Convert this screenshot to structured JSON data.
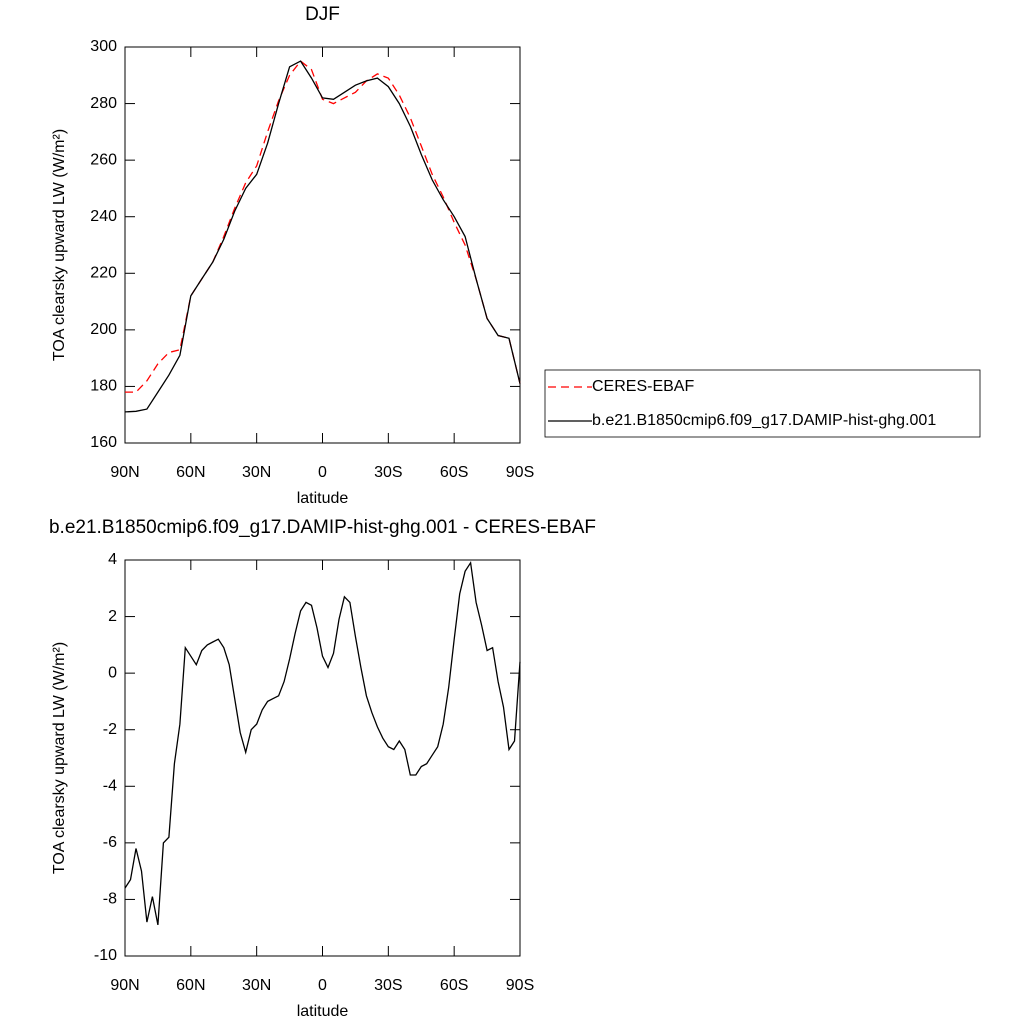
{
  "chart_data": [
    {
      "type": "line",
      "title": "DJF",
      "xlabel": "latitude",
      "ylabel": "TOA clearsky upward LW (W/m²)",
      "x": [
        90,
        85,
        80,
        75,
        70,
        65,
        60,
        55,
        50,
        45,
        40,
        35,
        30,
        25,
        20,
        15,
        10,
        5,
        0,
        -5,
        -10,
        -15,
        -20,
        -25,
        -30,
        -35,
        -40,
        -45,
        -50,
        -55,
        -60,
        -65,
        -70,
        -75,
        -80,
        -85,
        -90
      ],
      "series": [
        {
          "name": "CERES-EBAF",
          "color": "#ff0000",
          "dashed": true,
          "values": [
            178,
            178,
            182,
            188,
            192,
            193,
            212,
            218,
            224,
            233,
            243,
            252,
            258,
            270,
            281,
            290,
            295,
            292,
            281.5,
            280,
            282,
            284,
            288,
            290.5,
            289,
            283,
            275,
            265,
            255,
            247,
            238,
            230,
            218,
            204,
            198,
            197,
            181
          ]
        },
        {
          "name": "b.e21.B1850cmip6.f09_g17.DAMIP-hist-ghg.001",
          "color": "#000000",
          "dashed": false,
          "values": [
            171,
            171.2,
            172,
            178,
            184,
            191,
            212,
            218,
            224,
            232,
            242,
            250,
            255,
            266,
            280,
            293,
            295,
            289,
            282,
            281.5,
            284,
            286.5,
            288,
            289,
            286,
            280,
            272,
            262,
            253,
            246,
            240,
            233,
            218,
            204,
            198,
            197,
            181
          ]
        }
      ],
      "xlim": [
        90,
        -90
      ],
      "xticks": [
        {
          "value": 90,
          "label": "90N"
        },
        {
          "value": 60,
          "label": "60N"
        },
        {
          "value": 30,
          "label": "30N"
        },
        0,
        {
          "value": -30,
          "label": "30S"
        },
        {
          "value": -60,
          "label": "60S"
        },
        {
          "value": -90,
          "label": "90S"
        }
      ],
      "ylim": [
        160,
        300
      ],
      "yticks": [
        160,
        180,
        200,
        220,
        240,
        260,
        280,
        300
      ],
      "legend": "right"
    },
    {
      "type": "line",
      "title": "b.e21.B1850cmip6.f09_g17.DAMIP-hist-ghg.001 - CERES-EBAF",
      "xlabel": "latitude",
      "ylabel": "TOA clearsky upward LW (W/m²)",
      "x": [
        90,
        87.5,
        85,
        82.5,
        80,
        77.5,
        75,
        72.5,
        70,
        67.5,
        65,
        62.5,
        60,
        57.5,
        55,
        52.5,
        50,
        47.5,
        45,
        42.5,
        40,
        37.5,
        35,
        32.5,
        30,
        27.5,
        25,
        22.5,
        20,
        17.5,
        15,
        12.5,
        10,
        7.5,
        5,
        2.5,
        0,
        -2.5,
        -5,
        -7.5,
        -10,
        -12.5,
        -15,
        -17.5,
        -20,
        -22.5,
        -25,
        -27.5,
        -30,
        -32.5,
        -35,
        -37.5,
        -40,
        -42.5,
        -45,
        -47.5,
        -50,
        -52.5,
        -55,
        -57.5,
        -60,
        -62.5,
        -65,
        -67.5,
        -70,
        -72.5,
        -75,
        -77.5,
        -80,
        -82.5,
        -85,
        -87.5,
        -90
      ],
      "series": [
        {
          "color": "#000000",
          "dashed": false,
          "values": [
            -7.6,
            -7.3,
            -6.2,
            -7.0,
            -8.8,
            -7.9,
            -8.9,
            -6.0,
            -5.8,
            -3.2,
            -1.8,
            0.9,
            0.6,
            0.3,
            0.8,
            1.0,
            1.1,
            1.2,
            0.9,
            0.3,
            -0.9,
            -2.1,
            -2.8,
            -2.0,
            -1.8,
            -1.3,
            -1.0,
            -0.9,
            -0.8,
            -0.3,
            0.5,
            1.4,
            2.2,
            2.5,
            2.4,
            1.6,
            0.6,
            0.2,
            0.7,
            1.9,
            2.7,
            2.5,
            1.3,
            0.2,
            -0.8,
            -1.4,
            -1.9,
            -2.3,
            -2.6,
            -2.7,
            -2.4,
            -2.7,
            -3.6,
            -3.6,
            -3.3,
            -3.2,
            -2.9,
            -2.6,
            -1.8,
            -0.5,
            1.2,
            2.8,
            3.6,
            3.9,
            2.5,
            1.7,
            0.8,
            0.9,
            -0.3,
            -1.2,
            -2.7,
            -2.4,
            0.4
          ]
        }
      ],
      "xlim": [
        90,
        -90
      ],
      "xticks": [
        {
          "value": 90,
          "label": "90N"
        },
        {
          "value": 60,
          "label": "60N"
        },
        {
          "value": 30,
          "label": "30N"
        },
        0,
        {
          "value": -30,
          "label": "30S"
        },
        {
          "value": -60,
          "label": "60S"
        },
        {
          "value": -90,
          "label": "90S"
        }
      ],
      "ylim": [
        -10,
        4
      ],
      "yticks": [
        -10,
        -8,
        -6,
        -4,
        -2,
        0,
        2,
        4
      ]
    }
  ]
}
